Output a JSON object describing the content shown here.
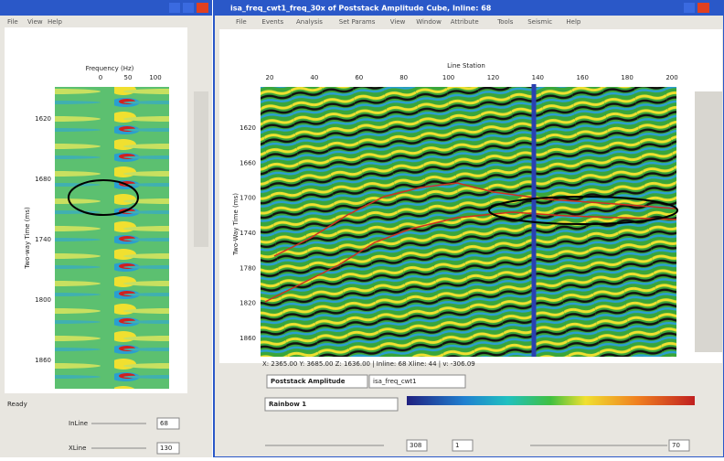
{
  "left_window": {
    "menu": [
      "File",
      "View",
      "Help"
    ],
    "x_axis_label": "Frequency (Hz)",
    "x_ticks": [
      "0",
      "50",
      "100"
    ],
    "y_axis_label": "Two-way Time (ms)",
    "y_ticks": [
      "1620",
      "1680",
      "1740",
      "1800",
      "1860"
    ],
    "status": "Ready",
    "inline_label": "InLine",
    "inline_value": "68",
    "xline_label": "XLine",
    "xline_value": "130"
  },
  "right_window": {
    "title": "isa_freq_cwt1_freq_30x of Poststack Amplitude Cube, Inline: 68",
    "menu": [
      "File",
      "Events",
      "Analysis",
      "Set Params",
      "View",
      "Window",
      "Attribute",
      "Tools",
      "Seismic",
      "Help"
    ],
    "x_axis_label": "Line Station",
    "x_ticks": [
      "20",
      "40",
      "60",
      "80",
      "100",
      "120",
      "140",
      "160",
      "180",
      "200"
    ],
    "y_axis_label": "Two-Way Time (ms)",
    "y_ticks": [
      "1620",
      "1660",
      "1700",
      "1740",
      "1780",
      "1820",
      "1860"
    ],
    "status": "X: 2365.00 Y: 3685.00 Z: 1636.00 | Inline: 68 Xline: 44 | v: -306.09",
    "dataset": "Poststack Amplitude",
    "attribute": "isa_freq_cwt1",
    "colormap": "Rainbow 1",
    "slider_values": [
      "308",
      "1",
      "70"
    ]
  }
}
